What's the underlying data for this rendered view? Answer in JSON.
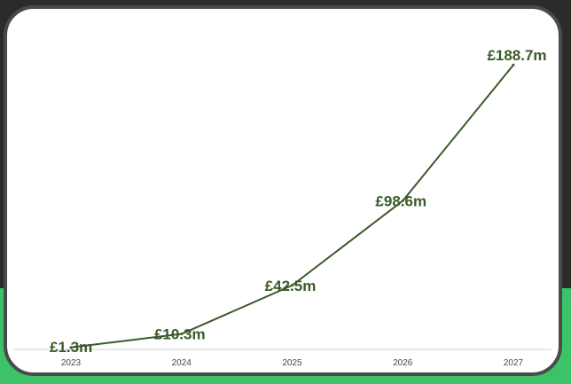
{
  "colors": {
    "background": "#2b2b2b",
    "accent_band": "#3cc36a",
    "card": "#ffffff",
    "card_border": "#4a4a4a",
    "line": "#3b5a2a",
    "axis": "#d0d0d0"
  },
  "chart_data": {
    "type": "line",
    "title": "",
    "xlabel": "",
    "ylabel": "",
    "categories": [
      "2023",
      "2024",
      "2025",
      "2026",
      "2027"
    ],
    "series": [
      {
        "values": [
          1.3,
          10.3,
          42.5,
          98.6,
          188.7
        ],
        "labels": [
          "£1.3m",
          "£10.3m",
          "£42.5m",
          "£98.6m",
          "£188.7m"
        ]
      }
    ],
    "ylim": [
      0,
      200
    ],
    "grid": false,
    "legend": "none"
  }
}
